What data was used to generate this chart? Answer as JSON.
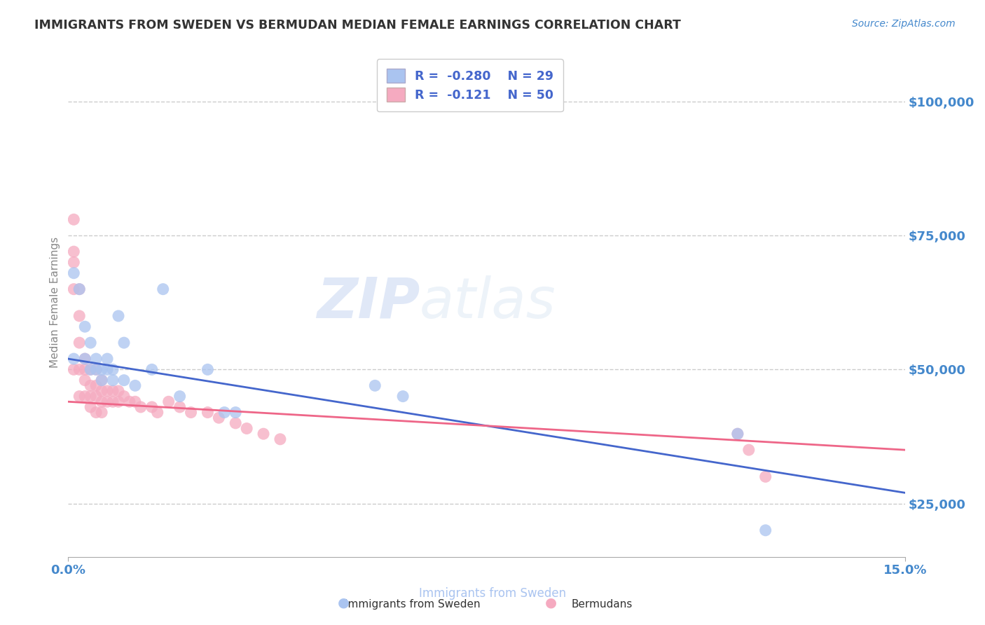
{
  "title": "IMMIGRANTS FROM SWEDEN VS BERMUDAN MEDIAN FEMALE EARNINGS CORRELATION CHART",
  "source": "Source: ZipAtlas.com",
  "ylabel": "Median Female Earnings",
  "xlim": [
    0.0,
    0.15
  ],
  "ylim": [
    15000,
    110000
  ],
  "yticks": [
    25000,
    50000,
    75000,
    100000
  ],
  "ytick_labels": [
    "$25,000",
    "$50,000",
    "$75,000",
    "$100,000"
  ],
  "grid_color": "#cccccc",
  "background_color": "#ffffff",
  "watermark_zip": "ZIP",
  "watermark_atlas": "atlas",
  "legend_r1": "R =  -0.280",
  "legend_n1": "N = 29",
  "legend_r2": "R =  -0.121",
  "legend_n2": "N = 50",
  "blue_color": "#aac4f0",
  "pink_color": "#f5aac0",
  "blue_line_color": "#4466cc",
  "pink_line_color": "#ee6688",
  "title_color": "#333333",
  "axis_label_color": "#4488cc",
  "legend_text_color": "#4466cc",
  "ylabel_color": "#888888",
  "sweden_x": [
    0.001,
    0.001,
    0.002,
    0.003,
    0.003,
    0.004,
    0.004,
    0.005,
    0.005,
    0.006,
    0.006,
    0.007,
    0.007,
    0.008,
    0.008,
    0.009,
    0.01,
    0.01,
    0.012,
    0.015,
    0.017,
    0.02,
    0.025,
    0.028,
    0.03,
    0.055,
    0.06,
    0.12,
    0.125
  ],
  "sweden_y": [
    52000,
    68000,
    65000,
    58000,
    52000,
    50000,
    55000,
    50000,
    52000,
    48000,
    50000,
    50000,
    52000,
    48000,
    50000,
    60000,
    55000,
    48000,
    47000,
    50000,
    65000,
    45000,
    50000,
    42000,
    42000,
    47000,
    45000,
    38000,
    20000
  ],
  "bermuda_x": [
    0.001,
    0.001,
    0.001,
    0.001,
    0.001,
    0.002,
    0.002,
    0.002,
    0.002,
    0.002,
    0.003,
    0.003,
    0.003,
    0.003,
    0.004,
    0.004,
    0.004,
    0.004,
    0.005,
    0.005,
    0.005,
    0.005,
    0.006,
    0.006,
    0.006,
    0.006,
    0.007,
    0.007,
    0.008,
    0.008,
    0.009,
    0.009,
    0.01,
    0.011,
    0.012,
    0.013,
    0.015,
    0.016,
    0.018,
    0.02,
    0.022,
    0.025,
    0.027,
    0.03,
    0.032,
    0.035,
    0.038,
    0.12,
    0.122,
    0.125
  ],
  "bermuda_y": [
    78000,
    72000,
    70000,
    65000,
    50000,
    65000,
    60000,
    55000,
    50000,
    45000,
    52000,
    50000,
    48000,
    45000,
    50000,
    47000,
    45000,
    43000,
    50000,
    47000,
    45000,
    42000,
    48000,
    46000,
    44000,
    42000,
    46000,
    44000,
    46000,
    44000,
    46000,
    44000,
    45000,
    44000,
    44000,
    43000,
    43000,
    42000,
    44000,
    43000,
    42000,
    42000,
    41000,
    40000,
    39000,
    38000,
    37000,
    38000,
    35000,
    30000
  ],
  "blue_line_x0": 0.0,
  "blue_line_y0": 52000,
  "blue_line_x1": 0.15,
  "blue_line_y1": 27000,
  "pink_line_x0": 0.0,
  "pink_line_y0": 44000,
  "pink_line_x1": 0.15,
  "pink_line_y1": 35000
}
